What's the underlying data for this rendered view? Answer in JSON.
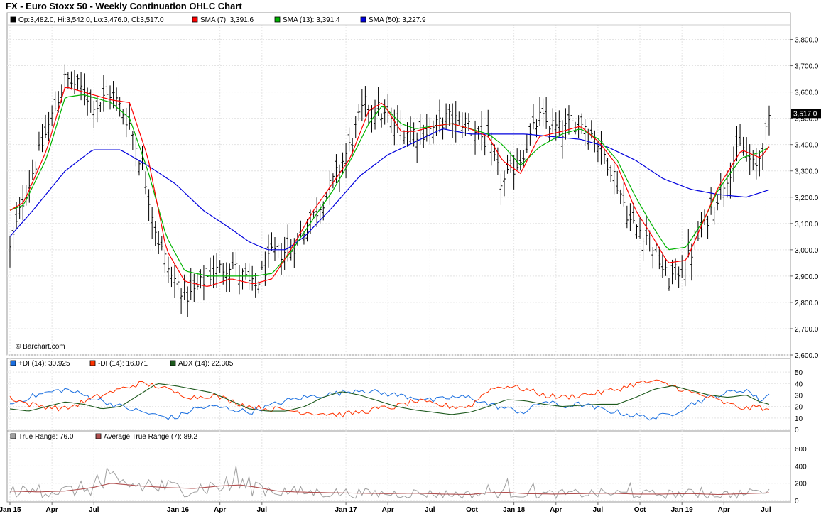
{
  "title": "FX - Euro Stoxx 50 - Weekly Continuation OHLC Chart",
  "watermark": "© Barchart.com",
  "colors": {
    "price_bar": "#000000",
    "sma7": "#ff0000",
    "sma13": "#00b400",
    "sma50": "#0000dd",
    "plus_di": "#1a6fe0",
    "minus_di": "#ff3300",
    "adx": "#1e5a1e",
    "true_range": "#a0a0a0",
    "avg_true_range": "#b05050",
    "last_price_bg": "#000000"
  },
  "chart_data": [
    {
      "type": "line",
      "panel": "price",
      "legend_items": [
        {
          "text": "Op:3,482.0, Hi:3,542.0, Lo:3,476.0, Cl:3,517.0",
          "swatch": "#000000"
        },
        {
          "text": "SMA (7): 3,391.6",
          "swatch": "#ff0000"
        },
        {
          "text": "SMA (13): 3,391.4",
          "swatch": "#00b400"
        },
        {
          "text": "SMA (50): 3,227.9",
          "swatch": "#0000dd"
        }
      ],
      "last_price_label": "3,517.0",
      "last_price_value": 3517,
      "ylim": [
        2600,
        3850
      ],
      "y_ticks": [
        2600,
        2700,
        2800,
        2900,
        3000,
        3100,
        3200,
        3300,
        3400,
        3500,
        3600,
        3700,
        3800
      ],
      "y_tick_labels": [
        "2,600.0",
        "2,700.0",
        "2,800.0",
        "2,900.0",
        "3,000.0",
        "3,100.0",
        "3,200.0",
        "3,300.0",
        "3,400.0",
        "3,500.0",
        "3,600.0",
        "3,700.0",
        "3,800.0"
      ],
      "grid": true,
      "anchors_close": [
        [
          0,
          3000
        ],
        [
          3,
          3200
        ],
        [
          8,
          3450
        ],
        [
          12,
          3650
        ],
        [
          15,
          3620
        ],
        [
          19,
          3550
        ],
        [
          22,
          3600
        ],
        [
          26,
          3480
        ],
        [
          29,
          3300
        ],
        [
          32,
          3050
        ],
        [
          35,
          2900
        ],
        [
          39,
          2820
        ],
        [
          43,
          2900
        ],
        [
          48,
          2950
        ],
        [
          53,
          2850
        ],
        [
          57,
          2980
        ],
        [
          61,
          3000
        ],
        [
          65,
          3100
        ],
        [
          70,
          3250
        ],
        [
          74,
          3400
        ],
        [
          77,
          3550
        ],
        [
          79,
          3550
        ],
        [
          83,
          3480
        ],
        [
          87,
          3450
        ],
        [
          91,
          3450
        ],
        [
          95,
          3500
        ],
        [
          100,
          3480
        ],
        [
          104,
          3400
        ],
        [
          107,
          3250
        ],
        [
          111,
          3350
        ],
        [
          115,
          3500
        ],
        [
          120,
          3450
        ],
        [
          124,
          3500
        ],
        [
          128,
          3400
        ],
        [
          131,
          3300
        ],
        [
          135,
          3100
        ],
        [
          139,
          3050
        ],
        [
          143,
          2880
        ],
        [
          147,
          2950
        ],
        [
          151,
          3100
        ],
        [
          155,
          3250
        ],
        [
          159,
          3400
        ],
        [
          162,
          3300
        ],
        [
          165,
          3480
        ]
      ],
      "sma7_anchors": [
        [
          0,
          3150
        ],
        [
          3,
          3180
        ],
        [
          8,
          3380
        ],
        [
          12,
          3620
        ],
        [
          16,
          3600
        ],
        [
          22,
          3570
        ],
        [
          26,
          3560
        ],
        [
          30,
          3350
        ],
        [
          34,
          3000
        ],
        [
          38,
          2880
        ],
        [
          43,
          2860
        ],
        [
          48,
          2890
        ],
        [
          53,
          2870
        ],
        [
          57,
          2890
        ],
        [
          61,
          3000
        ],
        [
          66,
          3150
        ],
        [
          70,
          3250
        ],
        [
          74,
          3350
        ],
        [
          78,
          3530
        ],
        [
          81,
          3560
        ],
        [
          85,
          3450
        ],
        [
          88,
          3450
        ],
        [
          92,
          3470
        ],
        [
          96,
          3480
        ],
        [
          100,
          3460
        ],
        [
          104,
          3430
        ],
        [
          107,
          3340
        ],
        [
          111,
          3290
        ],
        [
          115,
          3430
        ],
        [
          120,
          3450
        ],
        [
          124,
          3470
        ],
        [
          128,
          3410
        ],
        [
          132,
          3320
        ],
        [
          136,
          3150
        ],
        [
          140,
          3040
        ],
        [
          143,
          2950
        ],
        [
          147,
          2960
        ],
        [
          151,
          3120
        ],
        [
          154,
          3240
        ],
        [
          159,
          3380
        ],
        [
          163,
          3350
        ],
        [
          165,
          3392
        ]
      ],
      "sma13_anchors": [
        [
          0,
          3150
        ],
        [
          3,
          3170
        ],
        [
          8,
          3350
        ],
        [
          12,
          3580
        ],
        [
          16,
          3590
        ],
        [
          22,
          3560
        ],
        [
          26,
          3500
        ],
        [
          30,
          3300
        ],
        [
          34,
          3050
        ],
        [
          38,
          2920
        ],
        [
          43,
          2900
        ],
        [
          48,
          2900
        ],
        [
          53,
          2900
        ],
        [
          57,
          2910
        ],
        [
          61,
          2990
        ],
        [
          66,
          3120
        ],
        [
          70,
          3220
        ],
        [
          74,
          3340
        ],
        [
          78,
          3480
        ],
        [
          81,
          3550
        ],
        [
          85,
          3480
        ],
        [
          88,
          3460
        ],
        [
          92,
          3470
        ],
        [
          96,
          3480
        ],
        [
          100,
          3460
        ],
        [
          104,
          3440
        ],
        [
          107,
          3400
        ],
        [
          111,
          3320
        ],
        [
          115,
          3390
        ],
        [
          120,
          3440
        ],
        [
          124,
          3460
        ],
        [
          128,
          3420
        ],
        [
          132,
          3340
        ],
        [
          136,
          3200
        ],
        [
          140,
          3080
        ],
        [
          143,
          3000
        ],
        [
          147,
          3010
        ],
        [
          151,
          3120
        ],
        [
          154,
          3230
        ],
        [
          159,
          3350
        ],
        [
          163,
          3370
        ],
        [
          165,
          3391
        ]
      ],
      "sma50_anchors": [
        [
          0,
          3050
        ],
        [
          5,
          3150
        ],
        [
          12,
          3300
        ],
        [
          18,
          3380
        ],
        [
          24,
          3380
        ],
        [
          30,
          3320
        ],
        [
          36,
          3250
        ],
        [
          42,
          3150
        ],
        [
          48,
          3080
        ],
        [
          52,
          3030
        ],
        [
          56,
          3000
        ],
        [
          60,
          3000
        ],
        [
          64,
          3050
        ],
        [
          70,
          3160
        ],
        [
          76,
          3280
        ],
        [
          82,
          3360
        ],
        [
          88,
          3410
        ],
        [
          94,
          3460
        ],
        [
          100,
          3440
        ],
        [
          106,
          3440
        ],
        [
          112,
          3440
        ],
        [
          118,
          3430
        ],
        [
          124,
          3420
        ],
        [
          130,
          3390
        ],
        [
          136,
          3340
        ],
        [
          142,
          3270
        ],
        [
          148,
          3230
        ],
        [
          154,
          3210
        ],
        [
          160,
          3200
        ],
        [
          165,
          3228
        ]
      ]
    },
    {
      "type": "line",
      "panel": "dmi",
      "legend_items": [
        {
          "text": "+DI (14): 30.925",
          "swatch": "#1a6fe0"
        },
        {
          "text": "-DI (14): 16.071",
          "swatch": "#ff3300"
        },
        {
          "text": "ADX (14): 22.305",
          "swatch": "#1e5a1e"
        }
      ],
      "ylim": [
        0,
        55
      ],
      "y_ticks": [
        0,
        10,
        20,
        30,
        40,
        50
      ],
      "y_tick_labels": [
        "0",
        "10",
        "20",
        "30",
        "40",
        "50"
      ],
      "plus_di_anchors": [
        [
          0,
          22
        ],
        [
          4,
          28
        ],
        [
          8,
          32
        ],
        [
          12,
          35
        ],
        [
          16,
          30
        ],
        [
          20,
          25
        ],
        [
          24,
          20
        ],
        [
          28,
          16
        ],
        [
          32,
          12
        ],
        [
          36,
          10
        ],
        [
          40,
          18
        ],
        [
          44,
          20
        ],
        [
          48,
          18
        ],
        [
          52,
          15
        ],
        [
          56,
          20
        ],
        [
          60,
          25
        ],
        [
          64,
          28
        ],
        [
          68,
          30
        ],
        [
          72,
          32
        ],
        [
          76,
          35
        ],
        [
          80,
          32
        ],
        [
          84,
          30
        ],
        [
          88,
          28
        ],
        [
          92,
          25
        ],
        [
          96,
          28
        ],
        [
          100,
          28
        ],
        [
          104,
          22
        ],
        [
          108,
          18
        ],
        [
          112,
          15
        ],
        [
          116,
          25
        ],
        [
          120,
          20
        ],
        [
          124,
          22
        ],
        [
          128,
          18
        ],
        [
          132,
          15
        ],
        [
          136,
          12
        ],
        [
          140,
          10
        ],
        [
          144,
          14
        ],
        [
          148,
          22
        ],
        [
          152,
          28
        ],
        [
          156,
          32
        ],
        [
          160,
          35
        ],
        [
          163,
          25
        ],
        [
          165,
          31
        ]
      ],
      "minus_di_anchors": [
        [
          0,
          28
        ],
        [
          4,
          22
        ],
        [
          8,
          20
        ],
        [
          12,
          18
        ],
        [
          16,
          24
        ],
        [
          20,
          30
        ],
        [
          24,
          35
        ],
        [
          28,
          40
        ],
        [
          32,
          38
        ],
        [
          36,
          32
        ],
        [
          40,
          28
        ],
        [
          44,
          30
        ],
        [
          48,
          25
        ],
        [
          52,
          20
        ],
        [
          56,
          18
        ],
        [
          60,
          17
        ],
        [
          64,
          15
        ],
        [
          68,
          14
        ],
        [
          72,
          13
        ],
        [
          76,
          15
        ],
        [
          80,
          18
        ],
        [
          84,
          20
        ],
        [
          88,
          25
        ],
        [
          92,
          22
        ],
        [
          96,
          20
        ],
        [
          100,
          20
        ],
        [
          104,
          35
        ],
        [
          108,
          38
        ],
        [
          112,
          35
        ],
        [
          116,
          30
        ],
        [
          120,
          28
        ],
        [
          124,
          30
        ],
        [
          128,
          32
        ],
        [
          132,
          35
        ],
        [
          136,
          40
        ],
        [
          140,
          42
        ],
        [
          144,
          38
        ],
        [
          148,
          32
        ],
        [
          152,
          28
        ],
        [
          156,
          22
        ],
        [
          160,
          18
        ],
        [
          163,
          20
        ],
        [
          165,
          16
        ]
      ],
      "adx_anchors": [
        [
          0,
          18
        ],
        [
          4,
          16
        ],
        [
          8,
          20
        ],
        [
          12,
          24
        ],
        [
          16,
          22
        ],
        [
          20,
          18
        ],
        [
          24,
          20
        ],
        [
          28,
          30
        ],
        [
          32,
          40
        ],
        [
          36,
          38
        ],
        [
          40,
          35
        ],
        [
          44,
          32
        ],
        [
          48,
          25
        ],
        [
          52,
          18
        ],
        [
          56,
          16
        ],
        [
          60,
          16
        ],
        [
          64,
          20
        ],
        [
          68,
          28
        ],
        [
          72,
          33
        ],
        [
          76,
          30
        ],
        [
          80,
          25
        ],
        [
          84,
          20
        ],
        [
          88,
          17
        ],
        [
          92,
          15
        ],
        [
          96,
          13
        ],
        [
          100,
          15
        ],
        [
          104,
          20
        ],
        [
          108,
          26
        ],
        [
          112,
          25
        ],
        [
          116,
          22
        ],
        [
          120,
          20
        ],
        [
          124,
          21
        ],
        [
          128,
          22
        ],
        [
          132,
          22
        ],
        [
          136,
          28
        ],
        [
          140,
          35
        ],
        [
          144,
          38
        ],
        [
          148,
          34
        ],
        [
          152,
          30
        ],
        [
          156,
          28
        ],
        [
          160,
          30
        ],
        [
          163,
          24
        ],
        [
          165,
          22
        ]
      ]
    },
    {
      "type": "line",
      "panel": "true_range",
      "legend_items": [
        {
          "text": "True Range: 76.0",
          "swatch": "#a0a0a0"
        },
        {
          "text": "Average True Range (7): 89.2",
          "swatch": "#b05050"
        }
      ],
      "ylim": [
        0,
        700
      ],
      "y_ticks": [
        0,
        200,
        400,
        600
      ],
      "y_tick_labels": [
        "0",
        "200",
        "400",
        "600"
      ],
      "atr_anchors": [
        [
          0,
          110
        ],
        [
          6,
          100
        ],
        [
          12,
          110
        ],
        [
          18,
          150
        ],
        [
          22,
          200
        ],
        [
          28,
          170
        ],
        [
          34,
          150
        ],
        [
          40,
          140
        ],
        [
          46,
          170
        ],
        [
          50,
          180
        ],
        [
          54,
          150
        ],
        [
          58,
          110
        ],
        [
          62,
          100
        ],
        [
          66,
          95
        ],
        [
          70,
          90
        ],
        [
          76,
          85
        ],
        [
          82,
          80
        ],
        [
          88,
          85
        ],
        [
          94,
          75
        ],
        [
          100,
          70
        ],
        [
          104,
          90
        ],
        [
          108,
          95
        ],
        [
          112,
          80
        ],
        [
          118,
          75
        ],
        [
          124,
          80
        ],
        [
          130,
          85
        ],
        [
          136,
          75
        ],
        [
          142,
          75
        ],
        [
          148,
          80
        ],
        [
          154,
          70
        ],
        [
          160,
          80
        ],
        [
          165,
          89
        ]
      ],
      "tr_spikes": [
        [
          6,
          180
        ],
        [
          19,
          300
        ],
        [
          21,
          380
        ],
        [
          24,
          210
        ],
        [
          30,
          240
        ],
        [
          49,
          400
        ],
        [
          54,
          200
        ],
        [
          104,
          180
        ],
        [
          108,
          250
        ],
        [
          114,
          200
        ],
        [
          135,
          200
        ],
        [
          150,
          150
        ],
        [
          162,
          120
        ]
      ]
    }
  ],
  "x_axis": {
    "tick_labels": [
      "Jan 15",
      "Apr",
      "Jul",
      "Jan 16",
      "Apr",
      "Jul",
      "Jan 17",
      "Apr",
      "Jul",
      "Oct",
      "Jan 18",
      "Apr",
      "Jul",
      "Oct",
      "Jan 19",
      "Apr",
      "Jul"
    ],
    "tick_weeks": [
      0,
      13,
      26,
      52,
      65,
      78,
      104,
      117,
      130,
      143,
      156,
      169,
      182,
      195,
      208,
      221,
      234
    ],
    "week_count": 236
  }
}
